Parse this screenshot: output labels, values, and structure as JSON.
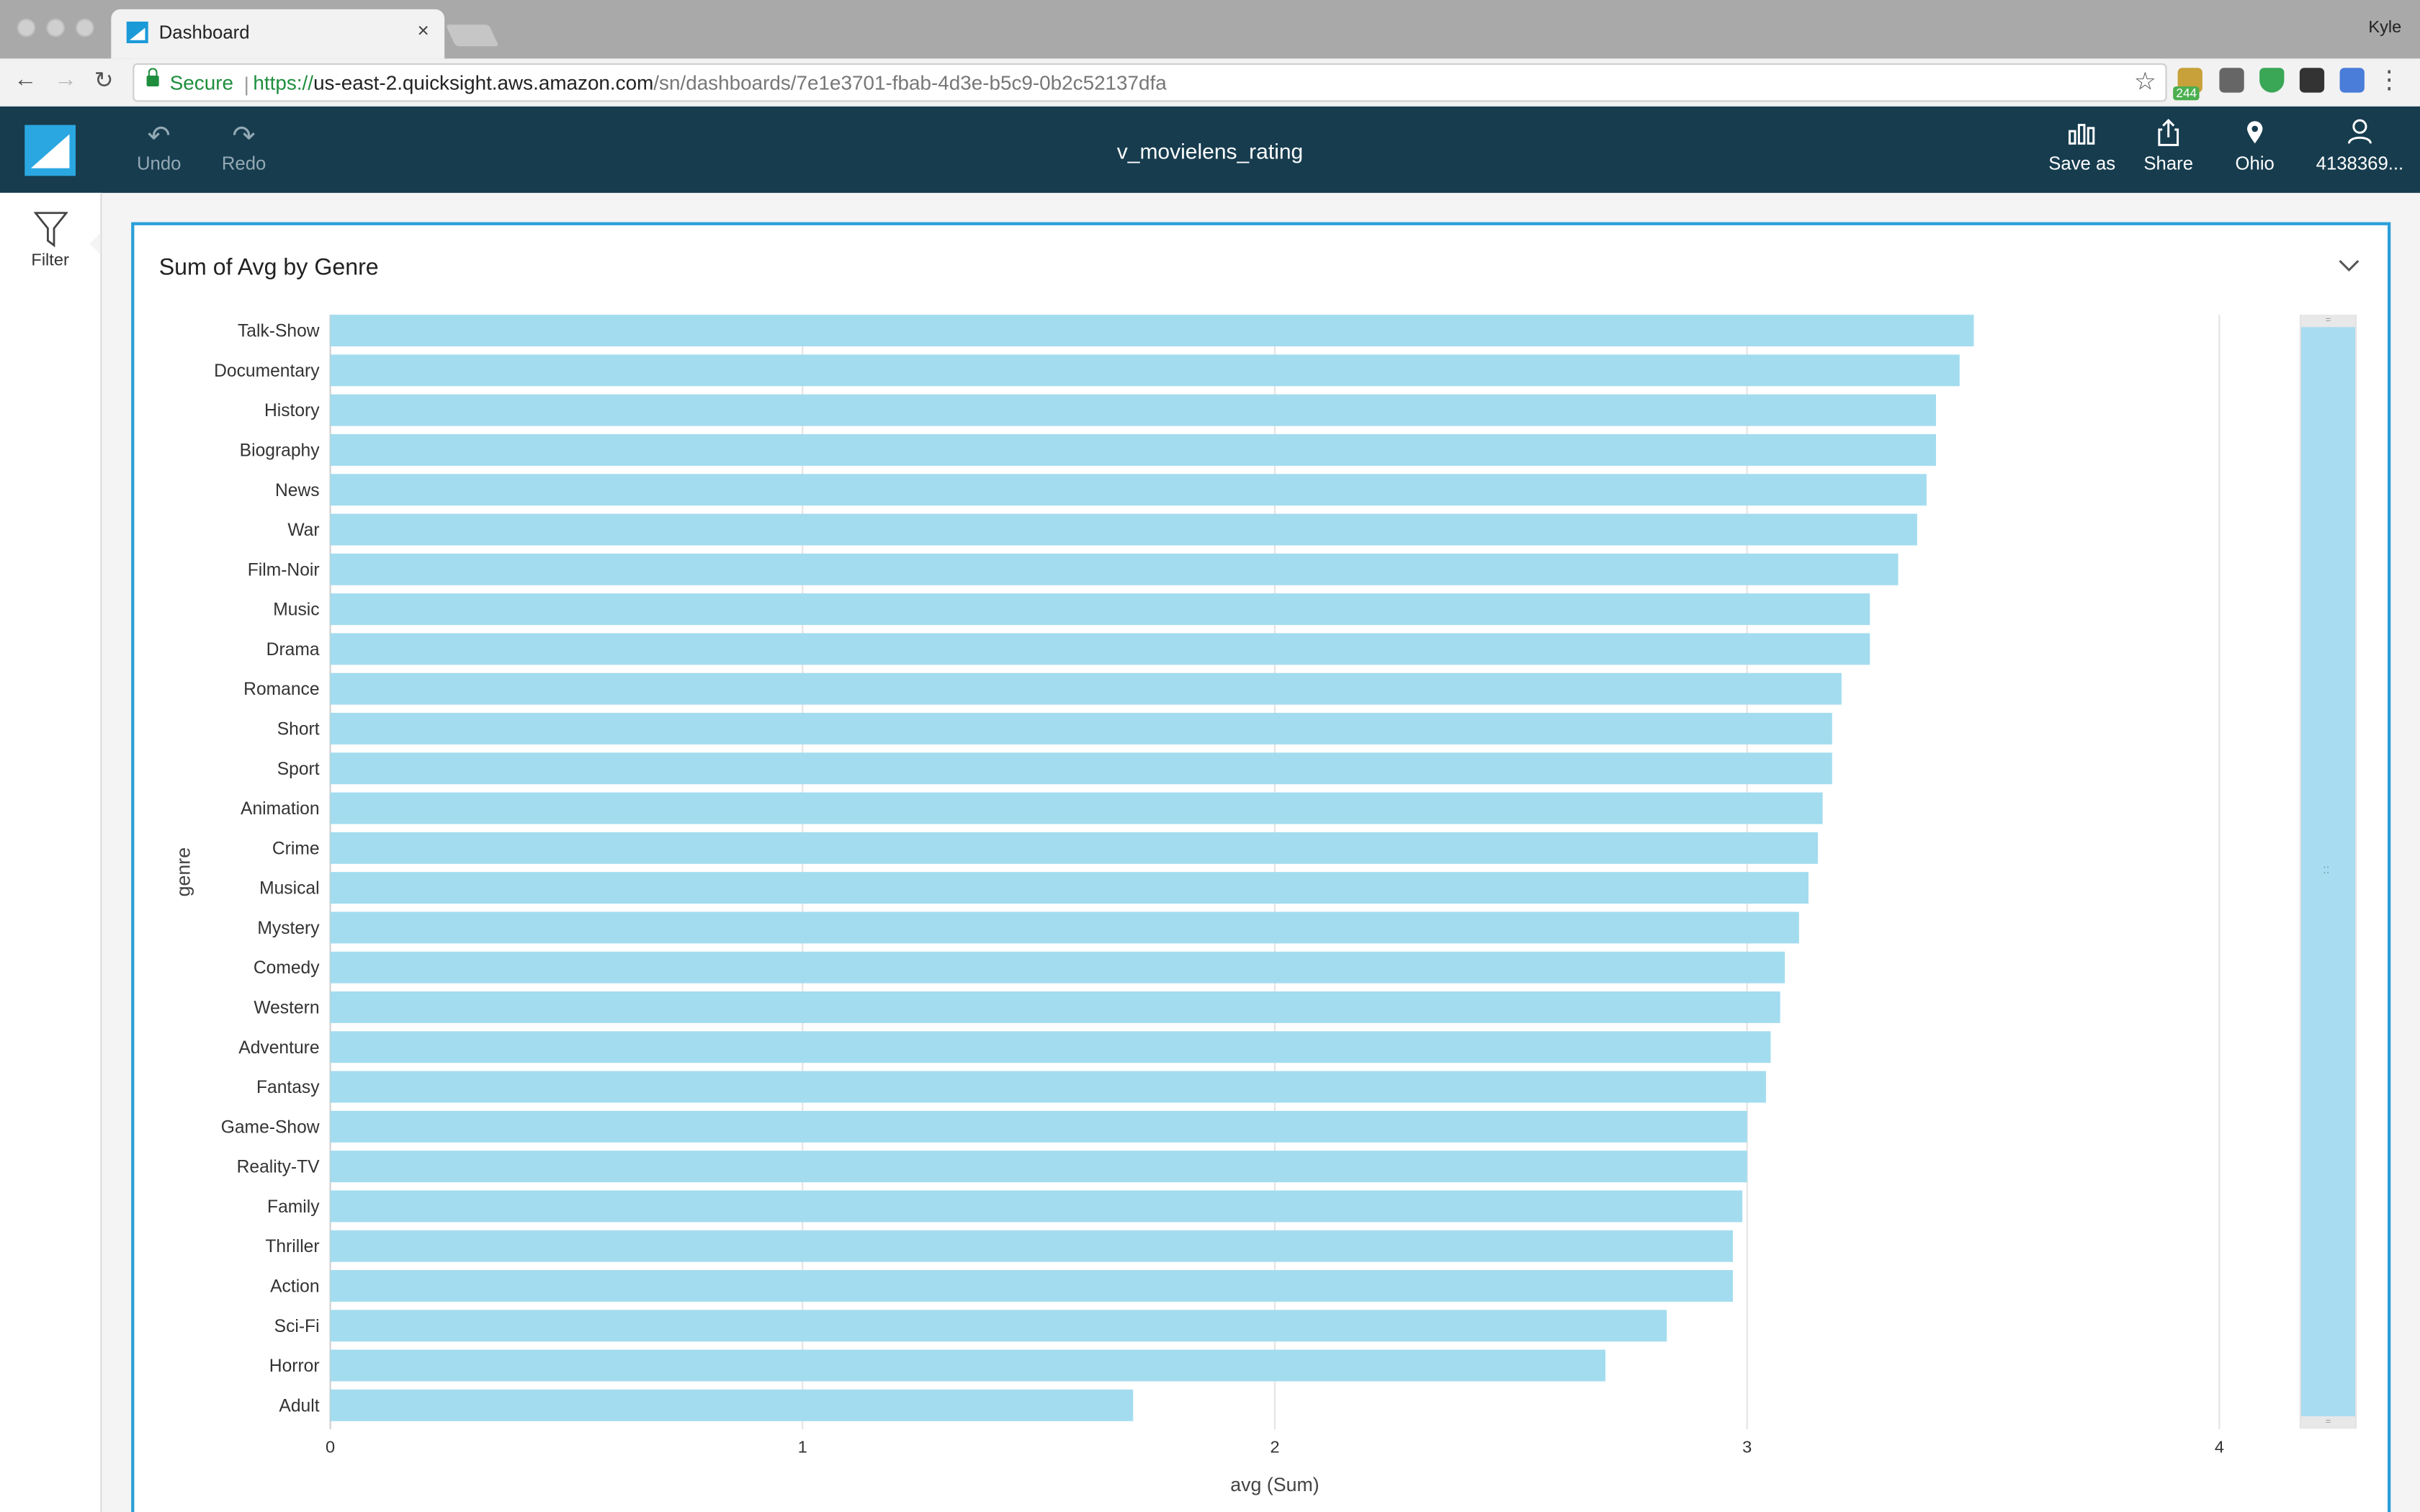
{
  "browser": {
    "tab_title": "Dashboard",
    "tab_close": "×",
    "profile_name": "Kyle",
    "secure_label": "Secure",
    "url_scheme": "https://",
    "url_host": "us-east-2.quicksight.aws.amazon.com",
    "url_path": "/sn/dashboards/7e1e3701-fbab-4d3e-b5c9-0b2c52137dfa",
    "extension_badge": "244"
  },
  "header": {
    "title": "v_movielens_rating",
    "undo_label": "Undo",
    "redo_label": "Redo",
    "save_as_label": "Save as",
    "share_label": "Share",
    "region_label": "Ohio",
    "account_label": "4138369..."
  },
  "left_rail": {
    "filter_label": "Filter"
  },
  "visual": {
    "title": "Sum of Avg by Genre"
  },
  "chart_data": {
    "type": "bar",
    "orientation": "horizontal",
    "title": "Sum of Avg by Genre",
    "xlabel": "avg (Sum)",
    "ylabel": "genre",
    "xlim": [
      0,
      4
    ],
    "xticks": [
      0,
      1,
      2,
      3,
      4
    ],
    "grid": true,
    "bar_color": "#a3dcef",
    "categories": [
      "Talk-Show",
      "Documentary",
      "History",
      "Biography",
      "News",
      "War",
      "Film-Noir",
      "Music",
      "Drama",
      "Romance",
      "Short",
      "Sport",
      "Animation",
      "Crime",
      "Musical",
      "Mystery",
      "Comedy",
      "Western",
      "Adventure",
      "Fantasy",
      "Game-Show",
      "Reality-TV",
      "Family",
      "Thriller",
      "Action",
      "Sci-Fi",
      "Horror",
      "Adult"
    ],
    "values": [
      3.48,
      3.45,
      3.4,
      3.4,
      3.38,
      3.36,
      3.32,
      3.26,
      3.26,
      3.2,
      3.18,
      3.18,
      3.16,
      3.15,
      3.13,
      3.11,
      3.08,
      3.07,
      3.05,
      3.04,
      3.0,
      3.0,
      2.99,
      2.97,
      2.97,
      2.83,
      2.7,
      1.7
    ]
  }
}
